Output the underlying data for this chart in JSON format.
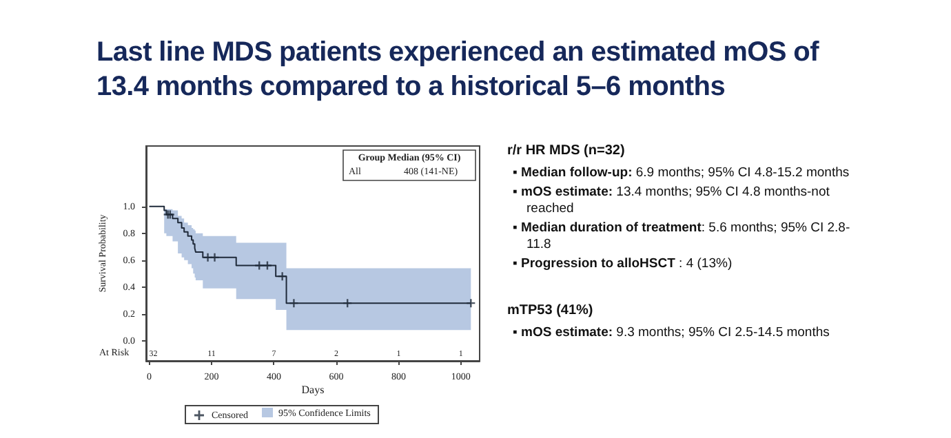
{
  "chart_data": {
    "type": "step",
    "title": "Last line MDS patients experienced an estimated mOS of 13.4 months compared to a historical 5–6 months",
    "xlabel": "Days",
    "ylabel": "Survival Probability",
    "xlim": [
      -10,
      1060
    ],
    "xticks": [
      0,
      200,
      400,
      600,
      800,
      1000
    ],
    "ylim": [
      -0.15,
      1.45
    ],
    "yticks": [
      {
        "value": 0,
        "label": "0.0"
      },
      {
        "value": 0.2,
        "label": "0.2"
      },
      {
        "value": 0.4,
        "label": "0.4"
      },
      {
        "value": 0.6,
        "label": "0.6"
      },
      {
        "value": 0.8,
        "label": "0.8"
      },
      {
        "value": 1,
        "label": "1.0"
      }
    ],
    "grid": false,
    "legend": "bottom",
    "series": [
      {
        "type": "step",
        "color": "#1f2a3a",
        "marker": "none",
        "x": [
          0,
          48,
          55,
          75,
          92,
          104,
          112,
          124,
          136,
          141,
          146,
          149,
          172,
          279,
          406,
          440,
          1032
        ],
        "values": [
          1.0,
          0.97,
          0.94,
          0.91,
          0.88,
          0.84,
          0.81,
          0.78,
          0.75,
          0.72,
          0.69,
          0.66,
          0.62,
          0.56,
          0.48,
          0.28,
          0.28
        ],
        "lower": [
          1.0,
          0.8,
          0.78,
          0.74,
          0.65,
          0.62,
          0.6,
          0.57,
          0.54,
          0.5,
          0.47,
          0.45,
          0.39,
          0.31,
          0.23,
          0.08,
          0.08
        ],
        "upper": [
          1.0,
          0.98,
          0.98,
          0.97,
          0.93,
          0.91,
          0.88,
          0.86,
          0.84,
          0.83,
          0.82,
          0.8,
          0.78,
          0.73,
          0.73,
          0.54,
          0.54
        ]
      },
      {
        "type": "scatter",
        "name": "Censored",
        "color": "#1f2a3a",
        "marker": "cross",
        "x": [
          60,
          67,
          188,
          210,
          353,
          379,
          427,
          464,
          636,
          1032
        ],
        "values": [
          0.94,
          0.94,
          0.62,
          0.62,
          0.56,
          0.56,
          0.48,
          0.28,
          0.28,
          0.28
        ]
      }
    ],
    "annotations": [
      "Group Median (95% CI)",
      "All",
      "408 (141-NE)",
      "95% Confidence Limits",
      "At Risk",
      "32",
      "11",
      "7",
      "2",
      "1",
      "1",
      "r/r HR MDS (n=32)",
      "▪ Median follow-up:",
      " 6.9 months; 95% CI 4.8-15.2 months",
      "▪ mOS estimate:",
      " 13.4 months; 95% CI 4.8 months-not reached",
      "▪ Median duration of treatment",
      ": 5.6 months; 95% CI 2.8-11.8",
      "▪ Progression to alloHSCT",
      " : 4 (13%)",
      "mTP53 (41%)",
      "▪ mOS estimate:",
      " 9.3 months; 95% CI 2.5-14.5 months"
    ]
  }
}
